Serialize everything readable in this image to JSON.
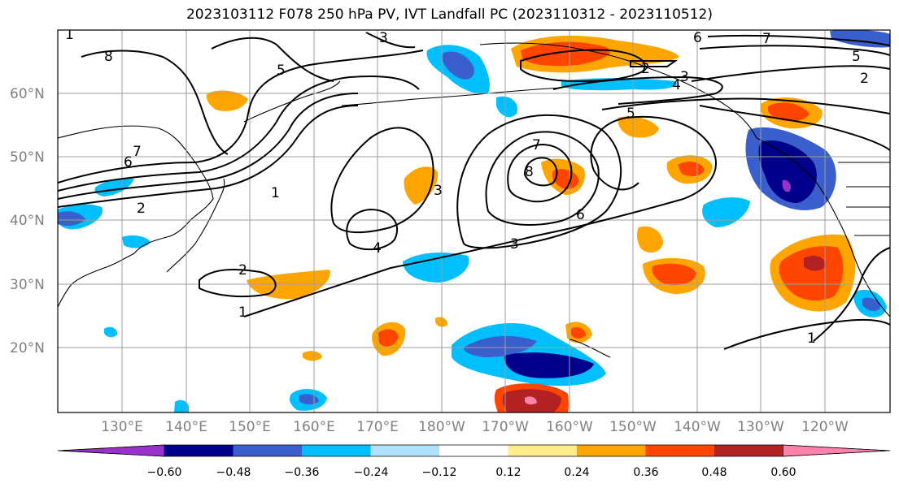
{
  "title": "2023103112 F078 250 hPa PV, IVT Landfall PC (2023110312 - 2023110512)",
  "map": {
    "lat_labels": [
      "60°N",
      "50°N",
      "40°N",
      "30°N",
      "20°N"
    ],
    "lon_labels": [
      "130°E",
      "140°E",
      "150°E",
      "160°E",
      "170°E",
      "180°W",
      "170°W",
      "160°W",
      "150°W",
      "140°W",
      "130°W",
      "120°W"
    ],
    "contour_labels": [
      "8",
      "5",
      "3",
      "1",
      "7",
      "6",
      "2",
      "1",
      "2",
      "4",
      "3",
      "3",
      "7",
      "8",
      "6",
      "5",
      "4",
      "3",
      "2",
      "1",
      "6",
      "7",
      "5",
      "2",
      "1"
    ]
  },
  "colorbar": {
    "ticks": [
      "−0.60",
      "−0.48",
      "−0.36",
      "−0.24",
      "−0.12",
      "0.12",
      "0.24",
      "0.36",
      "0.48",
      "0.60"
    ],
    "colors": [
      "#9932CC",
      "#00008B",
      "#3A5FCD",
      "#00BFFF",
      "#B0E2FF",
      "#FFFFFF",
      "#FFEC8B",
      "#FFA500",
      "#FF4500",
      "#B22222",
      "#FF82AB"
    ]
  }
}
